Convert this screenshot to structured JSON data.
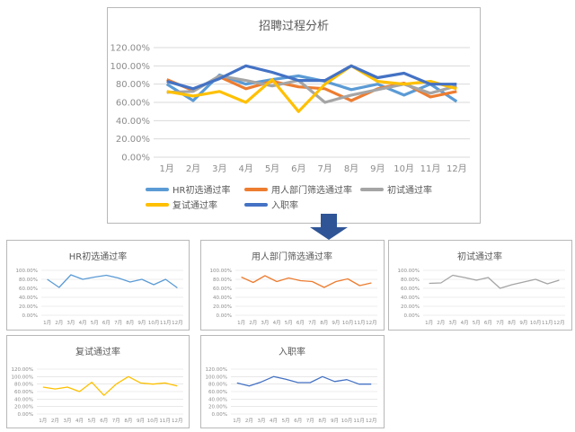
{
  "chart_data": [
    {
      "type": "line",
      "title": "招聘过程分析",
      "xlabel": "",
      "ylabel": "",
      "categories": [
        "1月",
        "2月",
        "3月",
        "4月",
        "5月",
        "6月",
        "7月",
        "8月",
        "9月",
        "10月",
        "11月",
        "12月"
      ],
      "yticks": [
        "0.00%",
        "20.00%",
        "40.00%",
        "60.00%",
        "80.00%",
        "100.00%",
        "120.00%"
      ],
      "ylim": [
        0,
        120
      ],
      "grid": true,
      "legend_position": "bottom",
      "series": [
        {
          "name": "HR初选通过率",
          "color": "#5B9BD5",
          "values": [
            80,
            62,
            90,
            80,
            85,
            89,
            83,
            74,
            80,
            68,
            80,
            61
          ]
        },
        {
          "name": "用人部门筛选通过率",
          "color": "#ED7D31",
          "values": [
            85,
            73,
            88,
            75,
            83,
            77,
            75,
            62,
            75,
            81,
            66,
            72
          ]
        },
        {
          "name": "初试通过率",
          "color": "#A5A5A5",
          "values": [
            71,
            72,
            89,
            84,
            78,
            84,
            60,
            68,
            74,
            80,
            70,
            78
          ]
        },
        {
          "name": "复试通过率",
          "color": "#FFC000",
          "values": [
            72,
            67,
            72,
            60,
            85,
            50,
            80,
            100,
            83,
            80,
            83,
            75
          ]
        },
        {
          "name": "入职率",
          "color": "#4472C4",
          "values": [
            83,
            75,
            86,
            100,
            93,
            84,
            84,
            100,
            87,
            92,
            80,
            80
          ]
        }
      ]
    },
    {
      "type": "line",
      "title": "HR初选通过率",
      "categories": [
        "1月",
        "2月",
        "3月",
        "4月",
        "5月",
        "6月",
        "7月",
        "8月",
        "9月",
        "10月",
        "11月",
        "12月"
      ],
      "yticks": [
        "0.00%",
        "20.00%",
        "40.00%",
        "60.00%",
        "80.00%",
        "100.00%"
      ],
      "ylim": [
        0,
        100
      ],
      "series": [
        {
          "name": "HR初选通过率",
          "color": "#5B9BD5",
          "values": [
            80,
            62,
            90,
            80,
            85,
            89,
            83,
            74,
            80,
            68,
            80,
            61
          ]
        }
      ]
    },
    {
      "type": "line",
      "title": "用人部门筛选通过率",
      "categories": [
        "1月",
        "2月",
        "3月",
        "4月",
        "5月",
        "6月",
        "7月",
        "8月",
        "9月",
        "10月",
        "11月",
        "12月"
      ],
      "yticks": [
        "0.00%",
        "20.00%",
        "40.00%",
        "60.00%",
        "80.00%",
        "100.00%"
      ],
      "ylim": [
        0,
        100
      ],
      "series": [
        {
          "name": "用人部门筛选通过率",
          "color": "#ED7D31",
          "values": [
            85,
            73,
            88,
            75,
            83,
            77,
            75,
            62,
            75,
            81,
            66,
            72
          ]
        }
      ]
    },
    {
      "type": "line",
      "title": "初试通过率",
      "categories": [
        "1月",
        "2月",
        "3月",
        "4月",
        "5月",
        "6月",
        "7月",
        "8月",
        "9月",
        "10月",
        "11月",
        "12月"
      ],
      "yticks": [
        "0.00%",
        "20.00%",
        "40.00%",
        "60.00%",
        "80.00%",
        "100.00%"
      ],
      "ylim": [
        0,
        100
      ],
      "series": [
        {
          "name": "初试通过率",
          "color": "#A5A5A5",
          "values": [
            71,
            72,
            89,
            84,
            78,
            84,
            60,
            68,
            74,
            80,
            70,
            78
          ]
        }
      ]
    },
    {
      "type": "line",
      "title": "复试通过率",
      "categories": [
        "1月",
        "2月",
        "3月",
        "4月",
        "5月",
        "6月",
        "7月",
        "8月",
        "9月",
        "10月",
        "11月",
        "12月"
      ],
      "yticks": [
        "0.00%",
        "20.00%",
        "40.00%",
        "60.00%",
        "80.00%",
        "100.00%",
        "120.00%"
      ],
      "ylim": [
        0,
        120
      ],
      "series": [
        {
          "name": "复试通过率",
          "color": "#FFC000",
          "values": [
            72,
            67,
            72,
            60,
            85,
            50,
            80,
            100,
            83,
            80,
            83,
            75
          ]
        }
      ]
    },
    {
      "type": "line",
      "title": "入职率",
      "categories": [
        "1月",
        "2月",
        "3月",
        "4月",
        "5月",
        "6月",
        "7月",
        "8月",
        "9月",
        "10月",
        "11月",
        "12月"
      ],
      "yticks": [
        "0.00%",
        "20.00%",
        "40.00%",
        "60.00%",
        "80.00%",
        "100.00%",
        "120.00%"
      ],
      "ylim": [
        0,
        120
      ],
      "series": [
        {
          "name": "入职率",
          "color": "#4472C4",
          "values": [
            83,
            75,
            86,
            100,
            93,
            84,
            84,
            100,
            87,
            92,
            80,
            80
          ]
        }
      ]
    }
  ],
  "arrow": {
    "color": "#2F5597",
    "icon": "down-arrow-icon"
  }
}
